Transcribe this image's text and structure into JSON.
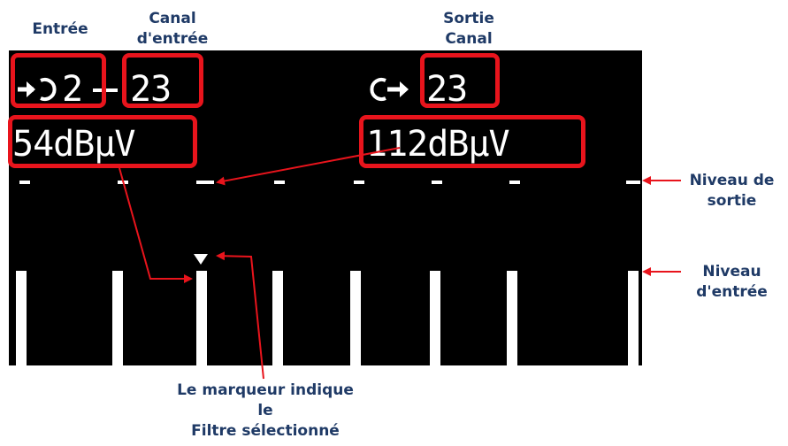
{
  "labels": {
    "entree": "Entrée",
    "canal_entree_1": "Canal",
    "canal_entree_2": "d'entrée",
    "sortie_1": "Sortie",
    "sortie_2": "Canal",
    "niveau_sortie_1": "Niveau de",
    "niveau_sortie_2": "sortie",
    "niveau_entree_1": "Niveau",
    "niveau_entree_2": "d'entrée",
    "marqueur_1": "Le marqueur indique",
    "marqueur_2": "le",
    "marqueur_3": "Filtre sélectionné"
  },
  "display": {
    "input_number": "2",
    "input_channel": "23",
    "output_channel": "23",
    "input_level": "54dBµV",
    "output_level": "112dBµV"
  },
  "colors": {
    "highlight": "#e8141c",
    "label_text": "#1f3a66",
    "screen_bg": "#000000",
    "screen_fg": "#ffffff"
  },
  "icons": [
    "input-arrow-icon",
    "output-arrow-icon",
    "filter-marker-icon"
  ]
}
